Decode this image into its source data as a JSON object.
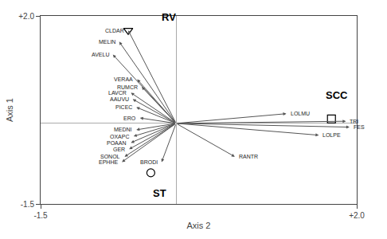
{
  "chart_data": {
    "type": "biplot",
    "xlabel": "Axis 2",
    "ylabel": "Axis 1",
    "xlim": [
      -1.5,
      2.0
    ],
    "ylim": [
      -1.5,
      2.0
    ],
    "xticks": [
      -1.5,
      {
        "value": 2.0,
        "label": "+2.0"
      }
    ],
    "yticks": [
      -1.5,
      {
        "value": 2.0,
        "label": "+2.0"
      }
    ],
    "grid": false,
    "series": [
      {
        "type": "vector",
        "color": "#555555",
        "points": [
          {
            "label": "CLDAR",
            "x": -0.53,
            "y": 1.73
          },
          {
            "label": "MELIN",
            "x": -0.63,
            "y": 1.52
          },
          {
            "label": "AVELU",
            "x": -0.7,
            "y": 1.28
          },
          {
            "label": "VERAA",
            "x": -0.43,
            "y": 0.82
          },
          {
            "label": "RUMCR",
            "x": -0.38,
            "y": 0.68
          },
          {
            "label": "LAVCR",
            "x": -0.5,
            "y": 0.57
          },
          {
            "label": "AAUVU",
            "x": -0.48,
            "y": 0.45
          },
          {
            "label": "PICEC",
            "x": -0.44,
            "y": 0.3
          },
          {
            "label": "ERO",
            "x": -0.4,
            "y": 0.1
          },
          {
            "label": "MEDNI",
            "x": -0.44,
            "y": -0.12
          },
          {
            "label": "OXAPC",
            "x": -0.47,
            "y": -0.24
          },
          {
            "label": "POAAN",
            "x": -0.5,
            "y": -0.36
          },
          {
            "label": "GER",
            "x": -0.52,
            "y": -0.48
          },
          {
            "label": "SONOL",
            "x": -0.57,
            "y": -0.62
          },
          {
            "label": "EPHHE",
            "x": -0.6,
            "y": -0.72
          },
          {
            "label": "BRODI",
            "x": -0.16,
            "y": -0.72
          },
          {
            "label": "RANTR",
            "x": 0.65,
            "y": -0.62
          },
          {
            "label": "LOLMU",
            "x": 1.22,
            "y": 0.18
          },
          {
            "label": "LOLPE",
            "x": 1.58,
            "y": -0.22
          },
          {
            "label": "TRI",
            "x": 1.88,
            "y": 0.04
          },
          {
            "label": "FES",
            "x": 1.92,
            "y": -0.07
          }
        ]
      },
      {
        "type": "scatter",
        "points": [
          {
            "label": "RV",
            "x": -0.53,
            "y": 1.73,
            "marker": "triangle-down-open",
            "label_x": -0.08,
            "label_y": 1.98
          },
          {
            "label": "ST",
            "x": -0.28,
            "y": -0.92,
            "marker": "circle-open",
            "label_x": -0.18,
            "label_y": -1.3
          },
          {
            "label": "SCC",
            "x": 1.72,
            "y": 0.08,
            "marker": "square-open",
            "label_x": 1.78,
            "label_y": 0.52
          }
        ]
      }
    ]
  }
}
